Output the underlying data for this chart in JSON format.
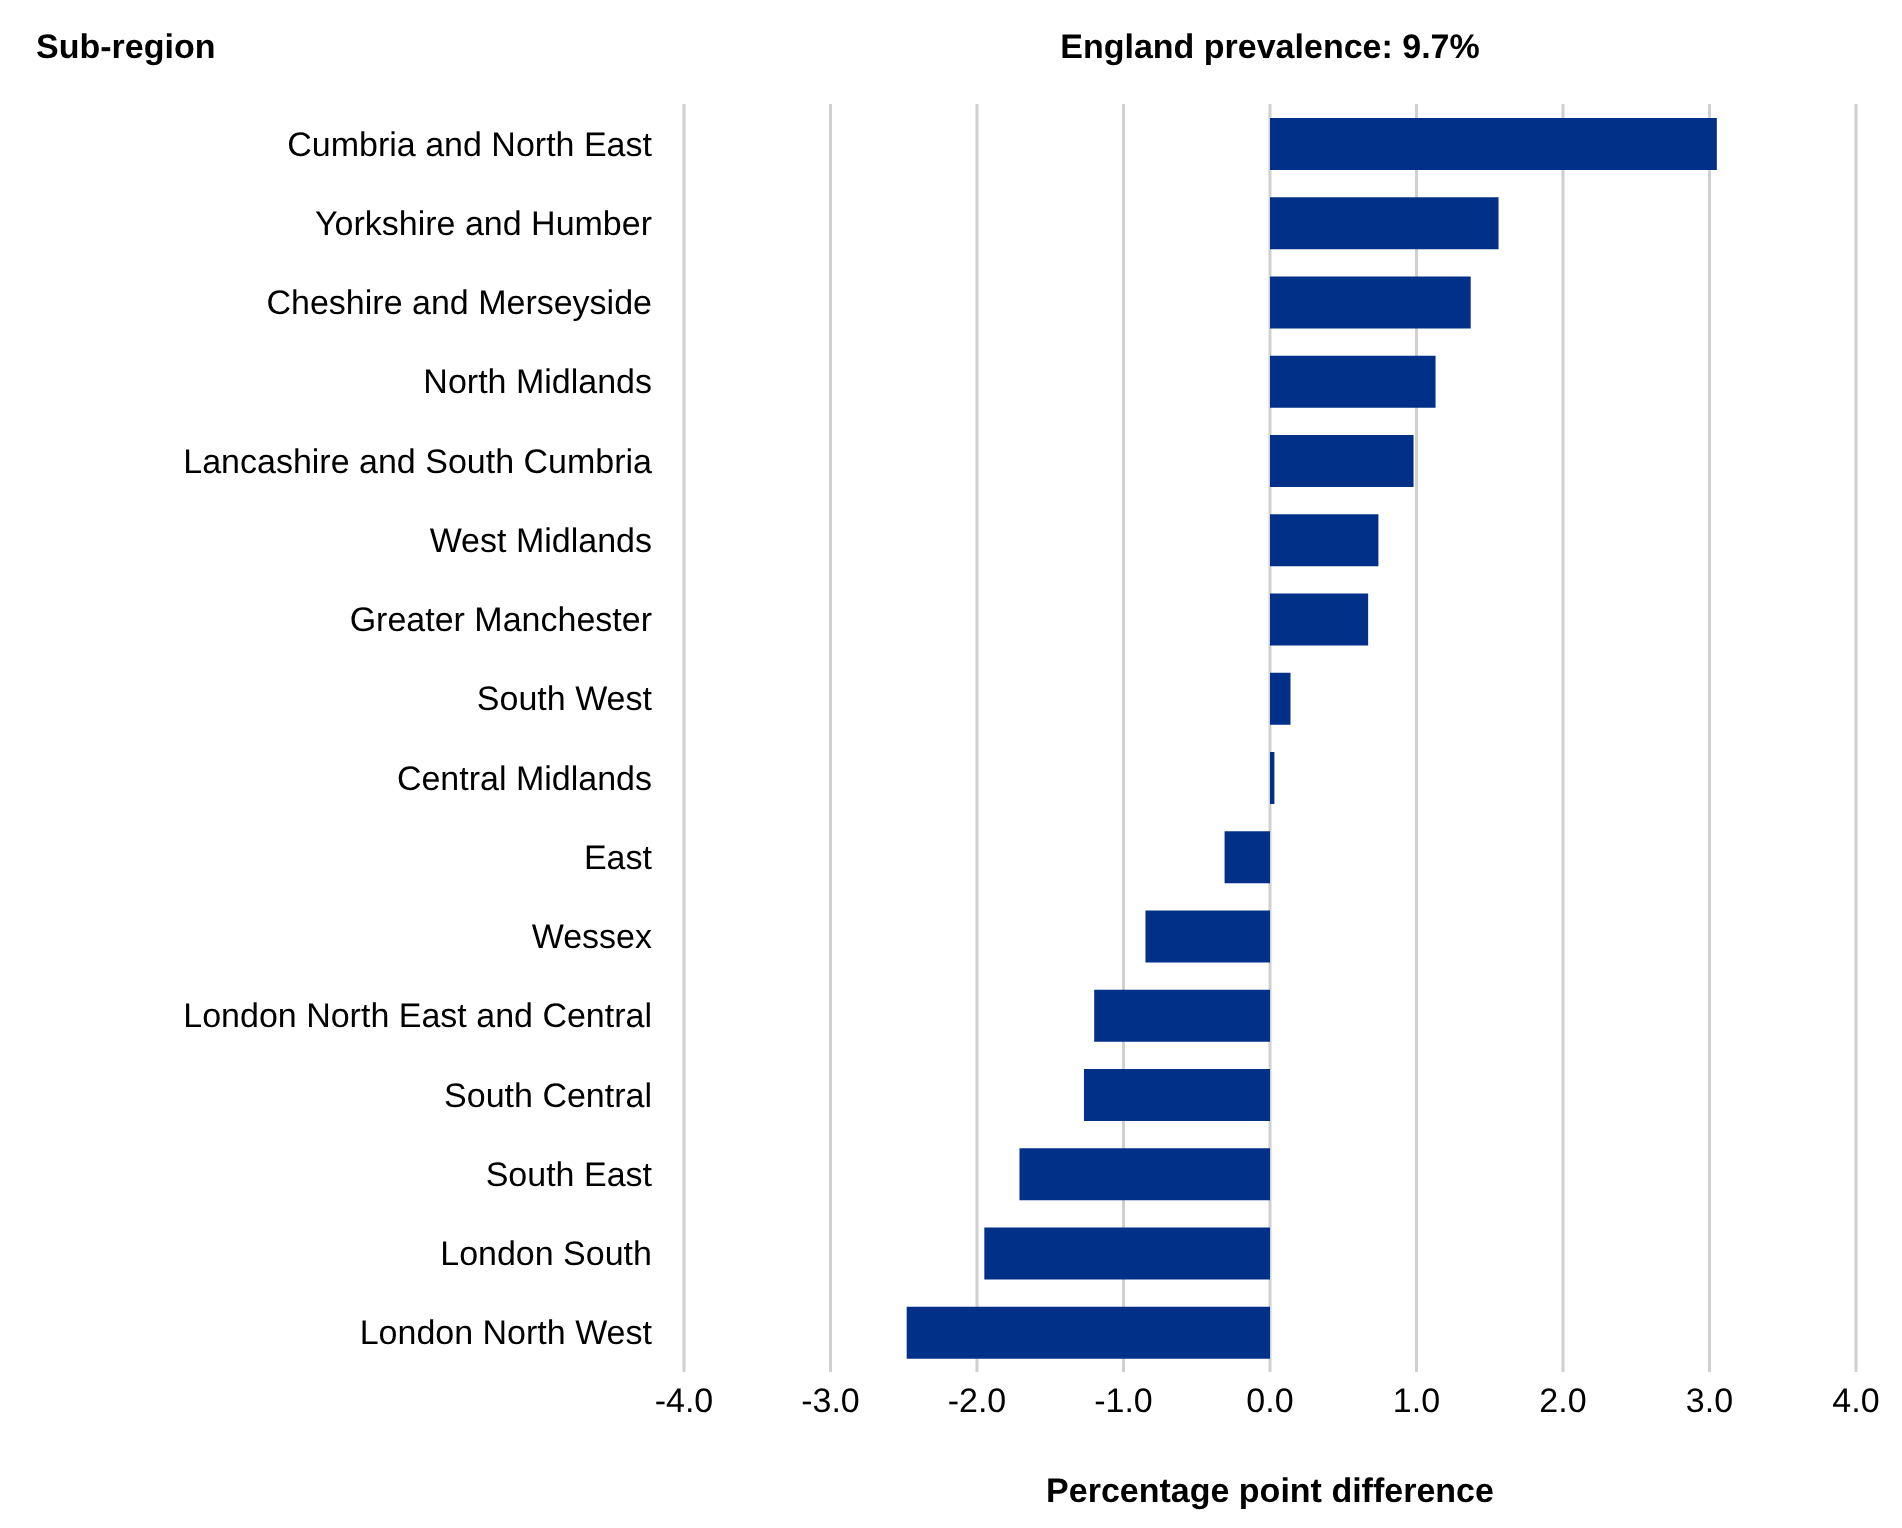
{
  "chart_data": {
    "type": "bar",
    "orientation": "horizontal",
    "title": "England prevalence: 9.7%",
    "ylabel": "Sub-region",
    "xlabel": "Percentage point difference",
    "categories": [
      "Cumbria and North East",
      "Yorkshire and Humber",
      "Cheshire and Merseyside",
      "North Midlands",
      "Lancashire and South Cumbria",
      "West Midlands",
      "Greater Manchester",
      "South West",
      "Central Midlands",
      "East",
      "Wessex",
      "London North East and Central",
      "South Central",
      "South East",
      "London South",
      "London North West"
    ],
    "values": [
      3.05,
      1.56,
      1.37,
      1.13,
      0.98,
      0.74,
      0.67,
      0.14,
      0.03,
      -0.31,
      -0.85,
      -1.2,
      -1.27,
      -1.71,
      -1.95,
      -2.48
    ],
    "color": "#003087",
    "xlim": [
      -4,
      4
    ],
    "xticks": [
      {
        "value": -4,
        "label": "-4.0"
      },
      {
        "value": -3,
        "label": "-3.0"
      },
      {
        "value": -2,
        "label": "-2.0"
      },
      {
        "value": -1,
        "label": "-1.0"
      },
      {
        "value": 0,
        "label": "0.0"
      },
      {
        "value": 1,
        "label": "1.0"
      },
      {
        "value": 2,
        "label": "2.0"
      },
      {
        "value": 3,
        "label": "3.0"
      },
      {
        "value": 4,
        "label": "4.0"
      }
    ],
    "grid": "x",
    "legend": false
  }
}
